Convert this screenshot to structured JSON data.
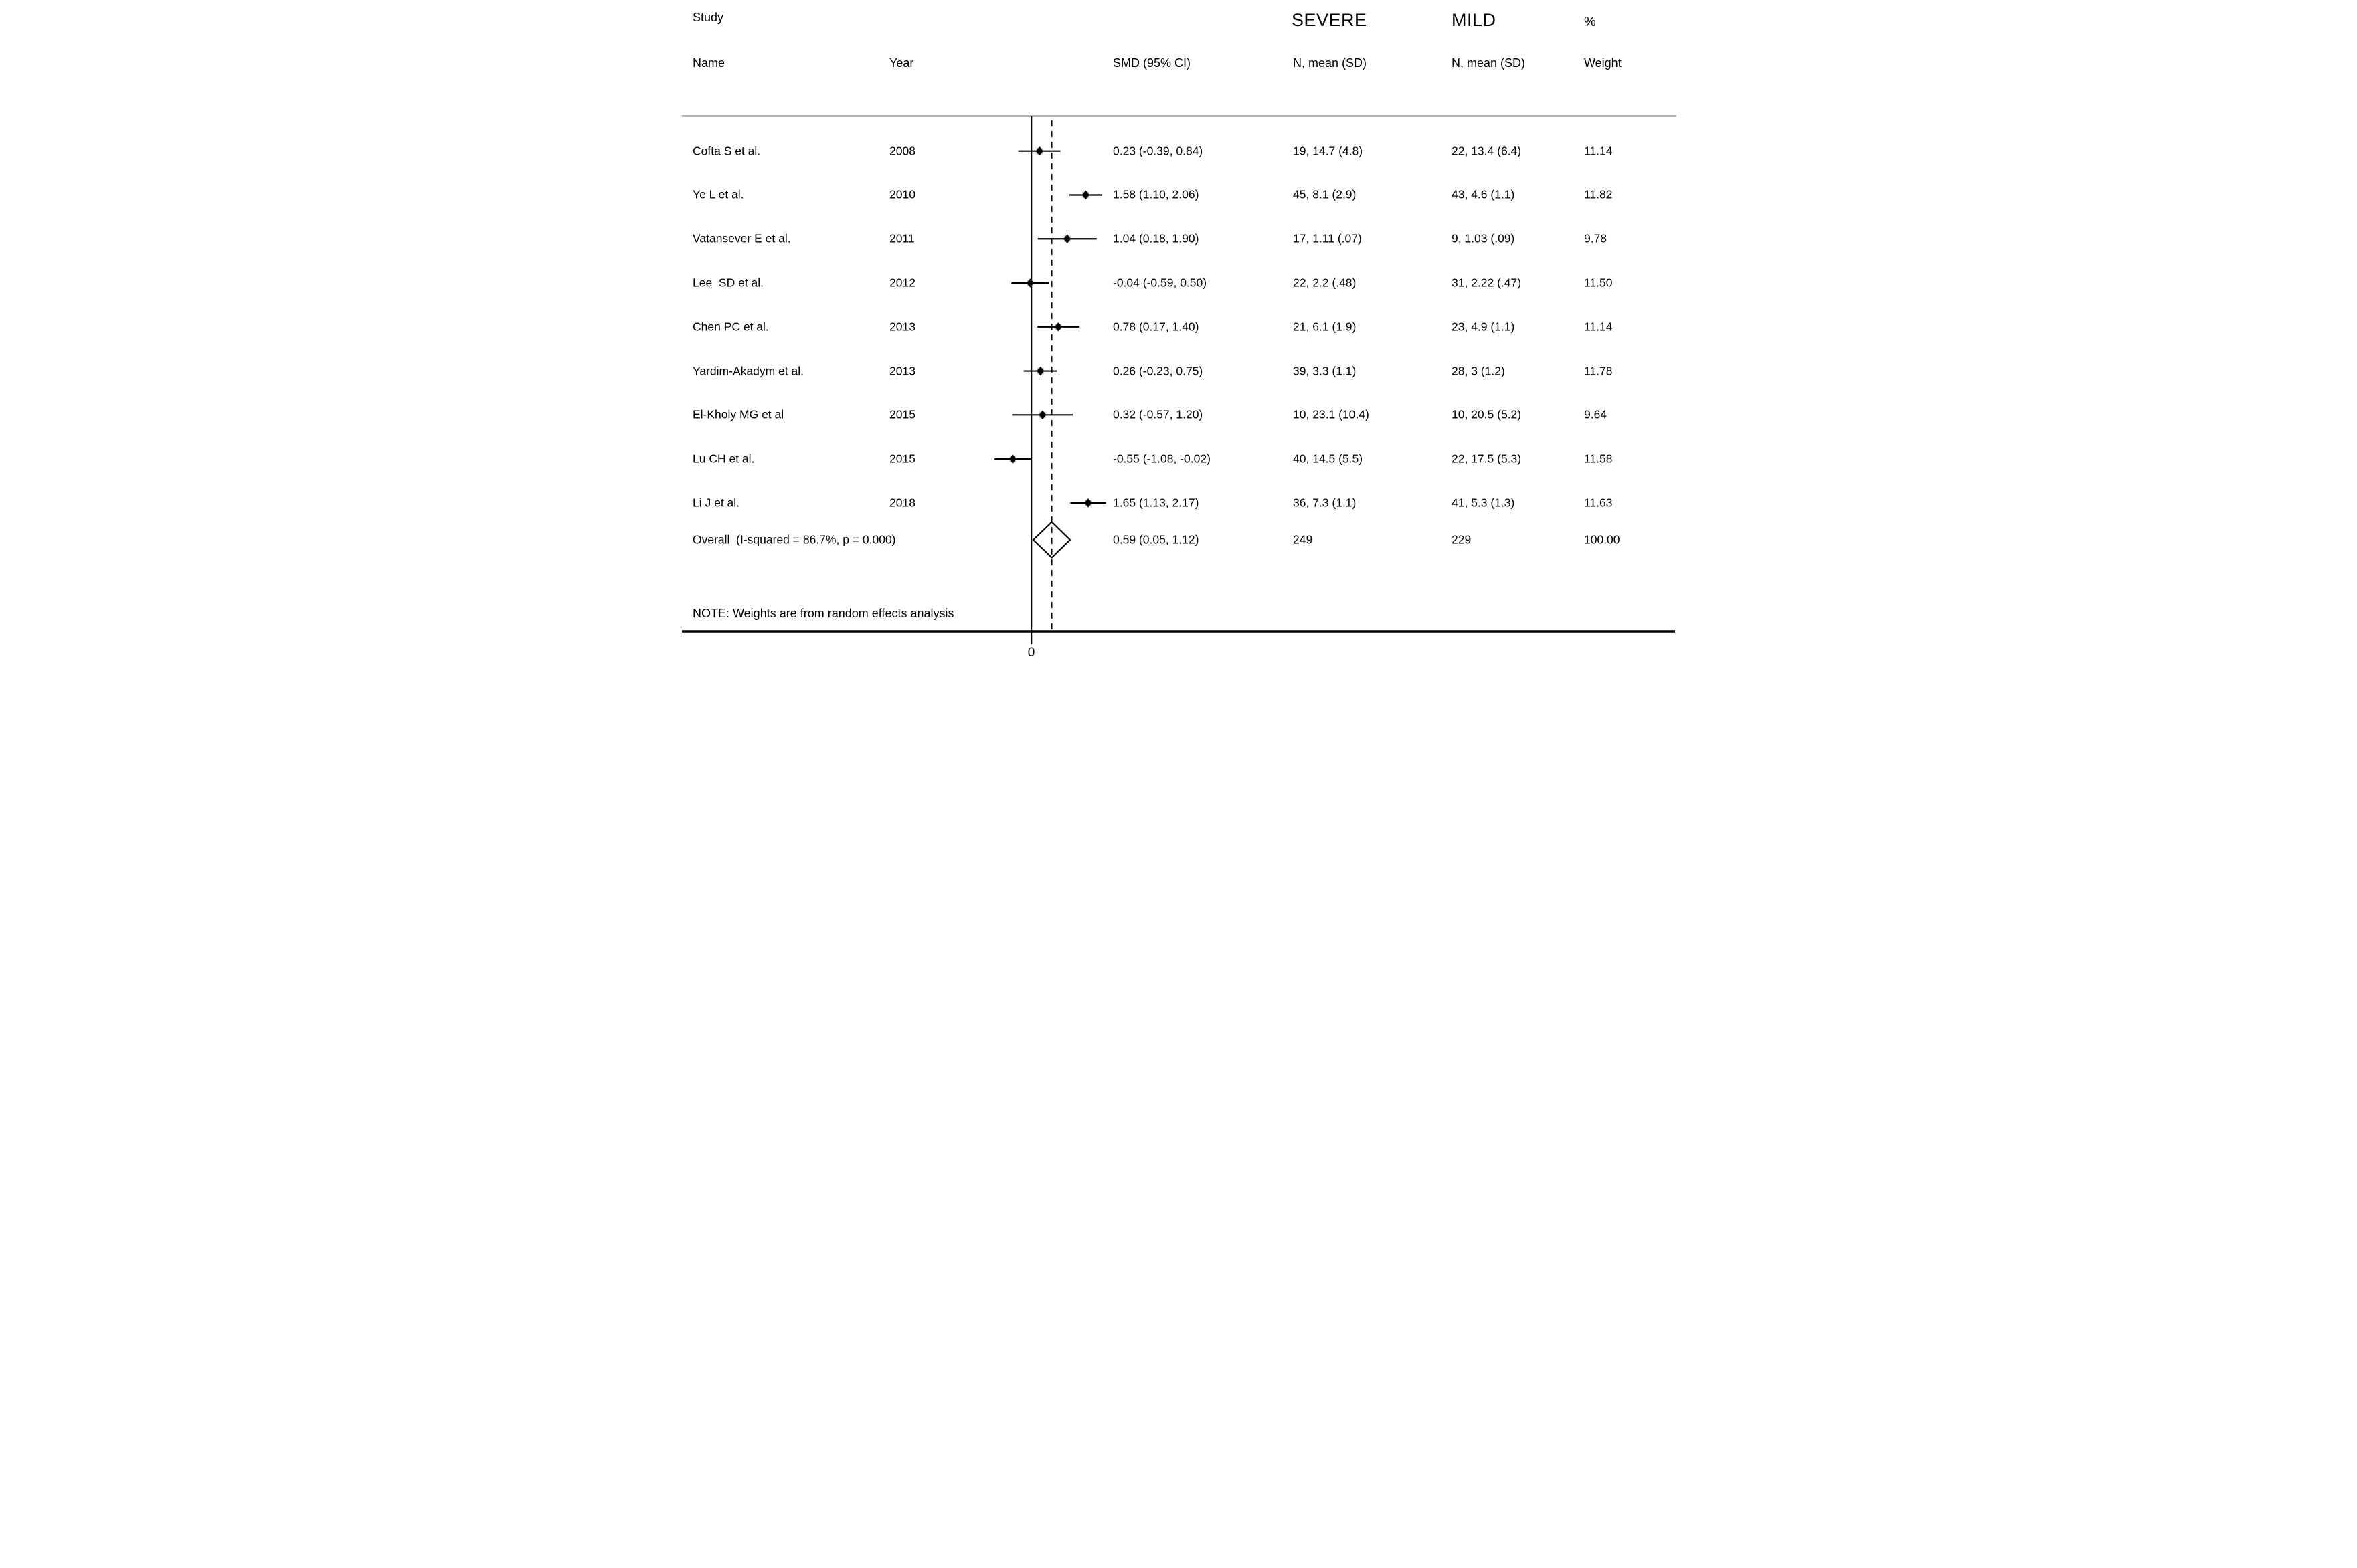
{
  "chart_data": {
    "type": "forest",
    "effect_measure": "SMD",
    "columns": {
      "study": "Study",
      "name": "Name",
      "year": "Year",
      "smd_ci": "SMD (95% CI)",
      "severe": "SEVERE",
      "mild": "MILD",
      "n_mean_sd_severe": "N, mean (SD)",
      "n_mean_sd_mild": "N, mean (SD)",
      "percent": "%",
      "weight": "Weight"
    },
    "studies": [
      {
        "name": "Cofta S et al.",
        "year": "2008",
        "est": 0.23,
        "lo": -0.39,
        "hi": 0.84,
        "smd_label": "0.23 (-0.39, 0.84)",
        "severe": "19, 14.7 (4.8)",
        "mild": "22, 13.4 (6.4)",
        "weight": "11.14"
      },
      {
        "name": "Ye L et al.",
        "year": "2010",
        "est": 1.58,
        "lo": 1.1,
        "hi": 2.06,
        "smd_label": "1.58 (1.10, 2.06)",
        "severe": "45, 8.1 (2.9)",
        "mild": "43, 4.6 (1.1)",
        "weight": "11.82"
      },
      {
        "name": "Vatansever E et al.",
        "year": "2011",
        "est": 1.04,
        "lo": 0.18,
        "hi": 1.9,
        "smd_label": "1.04 (0.18, 1.90)",
        "severe": "17, 1.11 (.07)",
        "mild": "9, 1.03 (.09)",
        "weight": "9.78"
      },
      {
        "name": "Lee  SD et al.",
        "year": "2012",
        "est": -0.04,
        "lo": -0.59,
        "hi": 0.5,
        "smd_label": "-0.04 (-0.59, 0.50)",
        "severe": "22, 2.2 (.48)",
        "mild": "31, 2.22 (.47)",
        "weight": "11.50"
      },
      {
        "name": "Chen PC et al.",
        "year": "2013",
        "est": 0.78,
        "lo": 0.17,
        "hi": 1.4,
        "smd_label": "0.78 (0.17, 1.40)",
        "severe": "21, 6.1 (1.9)",
        "mild": "23, 4.9 (1.1)",
        "weight": "11.14"
      },
      {
        "name": "Yardim-Akadym et al.",
        "year": "2013",
        "est": 0.26,
        "lo": -0.23,
        "hi": 0.75,
        "smd_label": "0.26 (-0.23, 0.75)",
        "severe": "39, 3.3 (1.1)",
        "mild": "28, 3 (1.2)",
        "weight": "11.78"
      },
      {
        "name": "El-Kholy MG et al",
        "year": "2015",
        "est": 0.32,
        "lo": -0.57,
        "hi": 1.2,
        "smd_label": "0.32 (-0.57, 1.20)",
        "severe": "10, 23.1 (10.4)",
        "mild": "10, 20.5 (5.2)",
        "weight": "9.64"
      },
      {
        "name": "Lu CH et al.",
        "year": "2015",
        "est": -0.55,
        "lo": -1.08,
        "hi": -0.02,
        "smd_label": "-0.55 (-1.08, -0.02)",
        "severe": "40, 14.5 (5.5)",
        "mild": "22, 17.5 (5.3)",
        "weight": "11.58"
      },
      {
        "name": "Li J et al.",
        "year": "2018",
        "est": 1.65,
        "lo": 1.13,
        "hi": 2.17,
        "smd_label": "1.65 (1.13, 2.17)",
        "severe": "36, 7.3 (1.1)",
        "mild": "41, 5.3 (1.3)",
        "weight": "11.63"
      }
    ],
    "overall": {
      "label": "Overall  (I-squared = 86.7%, p = 0.000)",
      "est": 0.59,
      "lo": 0.05,
      "hi": 1.12,
      "smd_label": "0.59 (0.05, 1.12)",
      "severe": "249",
      "mild": "229",
      "weight": "100.00"
    },
    "note": "NOTE: Weights are from random effects analysis",
    "x_axis": {
      "zero_tick_label": "0",
      "solid_line_at": 0,
      "dashed_line_at": 0.59
    },
    "layout_hints": {
      "xlim": [
        -1.45,
        2.45
      ],
      "grid": false,
      "colors": {
        "text": "#000000",
        "rule": "#b4b4b4",
        "marker_halo": "#c3c3c3"
      }
    }
  }
}
